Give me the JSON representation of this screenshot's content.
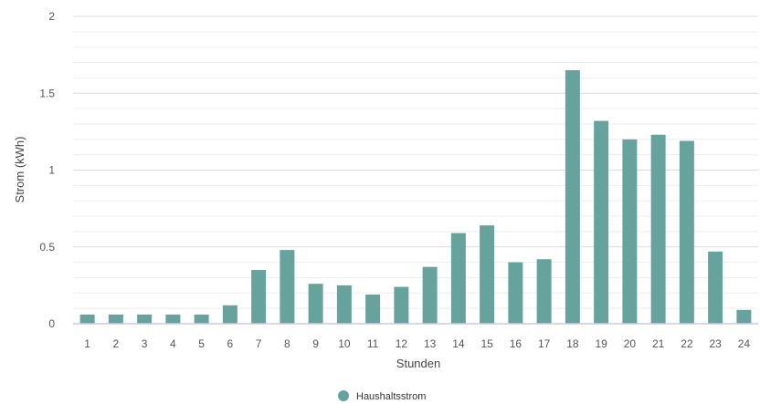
{
  "chart_data": {
    "type": "bar",
    "title": "",
    "xlabel": "Stunden",
    "ylabel": "Strom (kWh)",
    "ylim": [
      0,
      2
    ],
    "yticks": [
      "0",
      "0.5",
      "1",
      "1.5",
      "2"
    ],
    "grid": true,
    "legend_position": "bottom-center",
    "categories": [
      "1",
      "2",
      "3",
      "4",
      "5",
      "6",
      "7",
      "8",
      "9",
      "10",
      "11",
      "12",
      "13",
      "14",
      "15",
      "16",
      "17",
      "18",
      "19",
      "20",
      "21",
      "22",
      "23",
      "24"
    ],
    "series": [
      {
        "name": "Haushaltsstrom",
        "color": "#66a39d",
        "values": [
          0.06,
          0.06,
          0.06,
          0.06,
          0.06,
          0.12,
          0.35,
          0.48,
          0.26,
          0.25,
          0.19,
          0.24,
          0.37,
          0.59,
          0.64,
          0.4,
          0.42,
          1.65,
          1.32,
          1.2,
          1.23,
          1.19,
          0.47,
          0.09
        ]
      }
    ]
  }
}
